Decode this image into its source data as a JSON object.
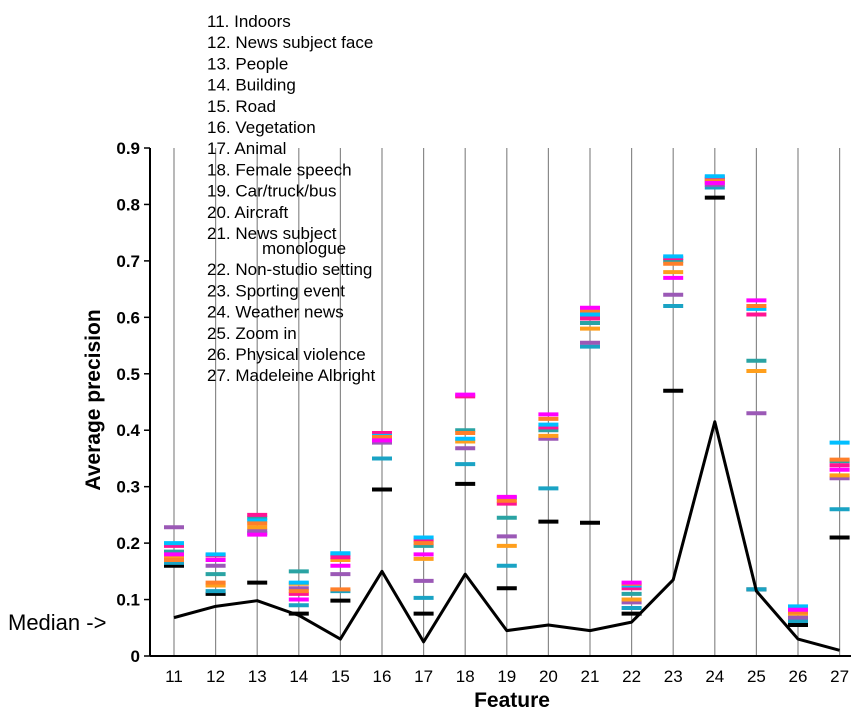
{
  "chart_data": {
    "type": "scatter",
    "xlabel": "Feature",
    "ylabel": "Average precision",
    "ylim": [
      0,
      0.9
    ],
    "yticks": [
      "0",
      "0.1",
      "0.2",
      "0.3",
      "0.4",
      "0.5",
      "0.6",
      "0.7",
      "0.8",
      "0.9"
    ],
    "categories": [
      "11",
      "12",
      "13",
      "14",
      "15",
      "16",
      "17",
      "18",
      "19",
      "20",
      "21",
      "22",
      "23",
      "24",
      "25",
      "26",
      "27"
    ],
    "legend": [
      "11. Indoors",
      "12. News subject face",
      "13. People",
      "14. Building",
      "15. Road",
      "16. Vegetation",
      "17. Animal",
      "18. Female speech",
      "19. Car/truck/bus",
      "20. Aircraft",
      "21. News subject",
      "monologue",
      "22. Non-studio setting",
      "23. Sporting event",
      "24. Weather news",
      "25. Zoom in",
      "26. Physical violence",
      "27. Madeleine Albright"
    ],
    "annotation": "Median ->",
    "median": [
      0.068,
      0.088,
      0.098,
      0.072,
      0.03,
      0.15,
      0.025,
      0.145,
      0.045,
      0.055,
      0.045,
      0.06,
      0.135,
      0.415,
      0.115,
      0.03,
      0.01
    ],
    "run_colors": [
      "#000000",
      "#1aa3c4",
      "#9b59b6",
      "#ff9f1c",
      "#2aa3a3",
      "#ff1493",
      "#00bfff",
      "#ff7f2a",
      "#ff00ff",
      "#ffff00",
      "#ff0000",
      "#13a3c8",
      "#20b2aa",
      "#1d4ed8",
      "#1a6b6b",
      "#00ccff",
      "#ffd700",
      "#ff5500",
      "#2e8b57",
      "#33cc99"
    ],
    "runs": [
      [
        0.16,
        0.11,
        0.13,
        0.075,
        0.098,
        0.295,
        0.075,
        0.305,
        0.12,
        0.238,
        0.236,
        0.075,
        0.47,
        0.812,
        0.118,
        0.055,
        0.21
      ],
      [
        0.165,
        0.115,
        0.218,
        0.09,
        0.115,
        0.35,
        0.103,
        0.34,
        0.16,
        0.297,
        0.548,
        0.085,
        0.62,
        0.83,
        0.118,
        0.062,
        0.26
      ],
      [
        0.228,
        0.16,
        0.222,
        0.12,
        0.145,
        0.378,
        0.133,
        0.368,
        0.212,
        0.385,
        0.555,
        0.095,
        0.64,
        0.835,
        0.43,
        0.068,
        0.315
      ],
      [
        0.175,
        0.125,
        0.228,
        0.128,
        0.17,
        0.385,
        0.172,
        0.38,
        0.195,
        0.39,
        0.58,
        0.1,
        0.68,
        0.84,
        0.505,
        0.075,
        0.32
      ],
      [
        0.185,
        0.145,
        0.245,
        0.15,
        0.18,
        0.392,
        0.195,
        0.4,
        0.245,
        0.4,
        0.59,
        0.11,
        0.7,
        0.845,
        0.523,
        0.08,
        0.345
      ],
      [
        0.195,
        0.178,
        0.25,
        0.11,
        0.175,
        0.395,
        0.205,
        0.46,
        0.27,
        0.405,
        0.598,
        0.12,
        0.705,
        0.848,
        0.605,
        0.085,
        0.338
      ],
      [
        0.2,
        0.18,
        0.24,
        0.13,
        0.182,
        0.39,
        0.21,
        0.385,
        0.28,
        0.41,
        0.605,
        0.125,
        0.708,
        0.85,
        0.615,
        0.088,
        0.378
      ],
      [
        0.17,
        0.13,
        0.235,
        0.115,
        0.118,
        0.388,
        0.2,
        0.395,
        0.275,
        0.42,
        0.612,
        0.128,
        0.695,
        0.842,
        0.62,
        0.078,
        0.348
      ],
      [
        0.18,
        0.17,
        0.215,
        0.1,
        0.16,
        0.382,
        0.18,
        0.463,
        0.282,
        0.428,
        0.617,
        0.13,
        0.67,
        0.838,
        0.63,
        0.082,
        0.33
      ]
    ]
  }
}
